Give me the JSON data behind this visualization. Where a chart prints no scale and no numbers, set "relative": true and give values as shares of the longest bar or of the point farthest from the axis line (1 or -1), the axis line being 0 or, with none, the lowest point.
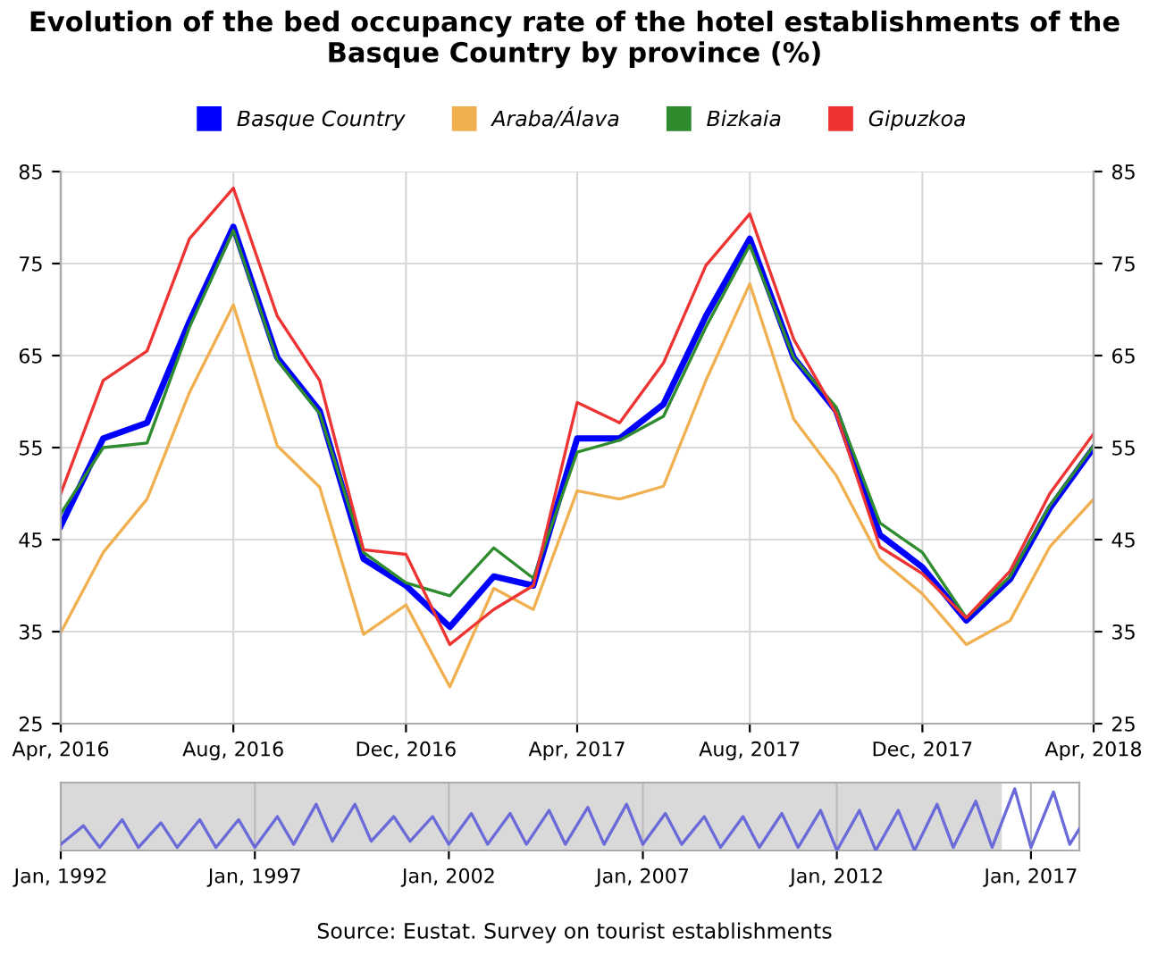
{
  "chart_data": [
    {
      "type": "line",
      "title": "Evolution of the bed occupancy rate of the hotel establishments of the Basque Country by province (%)",
      "x": [
        "2016-04",
        "2016-05",
        "2016-06",
        "2016-07",
        "2016-08",
        "2016-09",
        "2016-10",
        "2016-11",
        "2016-12",
        "2017-01",
        "2017-02",
        "2017-03",
        "2017-04",
        "2017-05",
        "2017-06",
        "2017-07",
        "2017-08",
        "2017-09",
        "2017-10",
        "2017-11",
        "2017-12",
        "2018-01",
        "2018-02",
        "2018-03",
        "2018-04"
      ],
      "series": [
        {
          "name": "Basque Country",
          "color": "#0000ff",
          "values": [
            46.5,
            56.0,
            57.7,
            68.7,
            79.0,
            64.8,
            59.0,
            42.9,
            40.0,
            35.5,
            41.0,
            40.0,
            56.0,
            56.0,
            59.7,
            69.3,
            77.7,
            64.8,
            59.0,
            45.5,
            42.0,
            36.2,
            40.7,
            48.4,
            55.0
          ]
        },
        {
          "name": "Araba/Álava",
          "color": "#f0b050",
          "values": [
            34.9,
            43.6,
            49.4,
            61.0,
            70.5,
            55.2,
            50.7,
            34.7,
            37.9,
            29.0,
            39.7,
            37.4,
            50.3,
            49.4,
            50.8,
            62.3,
            72.8,
            58.1,
            52.0,
            42.9,
            39.1,
            33.6,
            36.2,
            44.2,
            49.4
          ]
        },
        {
          "name": "Bizkaia",
          "color": "#2e8b2e",
          "values": [
            47.8,
            55.0,
            55.5,
            68.1,
            78.6,
            64.5,
            58.7,
            43.6,
            40.3,
            38.9,
            44.1,
            40.8,
            54.5,
            55.8,
            58.4,
            68.1,
            77.0,
            64.8,
            59.4,
            46.8,
            43.6,
            36.5,
            41.0,
            48.7,
            55.2
          ]
        },
        {
          "name": "Gipuzkoa",
          "color": "#ee3333",
          "values": [
            50.0,
            62.3,
            65.5,
            77.7,
            83.2,
            69.3,
            62.3,
            43.9,
            43.4,
            33.6,
            37.4,
            40.0,
            59.9,
            57.7,
            64.2,
            74.8,
            80.4,
            66.8,
            58.7,
            44.2,
            41.3,
            36.5,
            41.6,
            50.0,
            56.5
          ]
        }
      ],
      "xlim": [
        "2016-04",
        "2018-04"
      ],
      "xticks": [
        {
          "value": "2016-04",
          "label": "Apr, 2016"
        },
        {
          "value": "2016-08",
          "label": "Aug, 2016"
        },
        {
          "value": "2016-12",
          "label": "Dec, 2016"
        },
        {
          "value": "2017-04",
          "label": "Apr, 2017"
        },
        {
          "value": "2017-08",
          "label": "Aug, 2017"
        },
        {
          "value": "2017-12",
          "label": "Dec, 2017"
        },
        {
          "value": "2018-04",
          "label": "Apr, 2018"
        }
      ],
      "ylim": [
        25,
        85
      ],
      "yticks": [
        25,
        35,
        45,
        55,
        65,
        75,
        85
      ],
      "y2lim": [
        25,
        85
      ],
      "y2ticks": [
        25,
        35,
        45,
        55,
        65,
        75,
        85
      ],
      "grid": true,
      "legend": "top",
      "marker": "none",
      "line_style": "solid"
    },
    {
      "type": "line",
      "relative": true,
      "series": [
        {
          "color": "#6a6ad8",
          "x": [
            "1992-01",
            "1992-08",
            "1993-01",
            "1993-08",
            "1994-01",
            "1994-08",
            "1995-01",
            "1995-08",
            "1996-01",
            "1996-08",
            "1997-01",
            "1997-08",
            "1998-01",
            "1998-08",
            "1999-01",
            "1999-08",
            "2000-01",
            "2000-08",
            "2001-01",
            "2001-08",
            "2002-01",
            "2002-08",
            "2003-01",
            "2003-08",
            "2004-01",
            "2004-08",
            "2005-01",
            "2005-08",
            "2006-01",
            "2006-08",
            "2007-01",
            "2007-08",
            "2008-01",
            "2008-08",
            "2009-01",
            "2009-08",
            "2010-01",
            "2010-08",
            "2011-01",
            "2011-08",
            "2012-01",
            "2012-08",
            "2013-01",
            "2013-08",
            "2014-01",
            "2014-08",
            "2015-01",
            "2015-08",
            "2016-01",
            "2016-08",
            "2017-01",
            "2017-08",
            "2018-01",
            "2018-04"
          ],
          "values": [
            0.1,
            0.4,
            0.05,
            0.5,
            0.05,
            0.45,
            0.05,
            0.5,
            0.05,
            0.5,
            0.05,
            0.55,
            0.1,
            0.75,
            0.15,
            0.75,
            0.15,
            0.55,
            0.15,
            0.55,
            0.1,
            0.6,
            0.1,
            0.6,
            0.1,
            0.65,
            0.1,
            0.7,
            0.1,
            0.75,
            0.1,
            0.6,
            0.1,
            0.55,
            0.05,
            0.55,
            0.05,
            0.6,
            0.05,
            0.65,
            0.0,
            0.65,
            0.0,
            0.65,
            0.0,
            0.75,
            0.05,
            0.8,
            0.05,
            1.0,
            0.05,
            0.95,
            0.1,
            0.35
          ]
        }
      ],
      "xlim": [
        "1992-01",
        "2018-04"
      ],
      "xticks": [
        {
          "value": "1992-01",
          "label": "Jan, 1992"
        },
        {
          "value": "1997-01",
          "label": "Jan, 1997"
        },
        {
          "value": "2002-01",
          "label": "Jan, 2002"
        },
        {
          "value": "2007-01",
          "label": "Jan, 2007"
        },
        {
          "value": "2012-01",
          "label": "Jan, 2012"
        },
        {
          "value": "2017-01",
          "label": "Jan, 2017"
        }
      ],
      "bands": [
        {
          "axis": "x",
          "from": "1992-01",
          "to": "2016-04",
          "color": "#d9d9d9"
        }
      ],
      "grid": "x",
      "tick_labels": "x",
      "annotations": [
        "Source: Eustat. Survey on tourist establishments"
      ]
    }
  ]
}
